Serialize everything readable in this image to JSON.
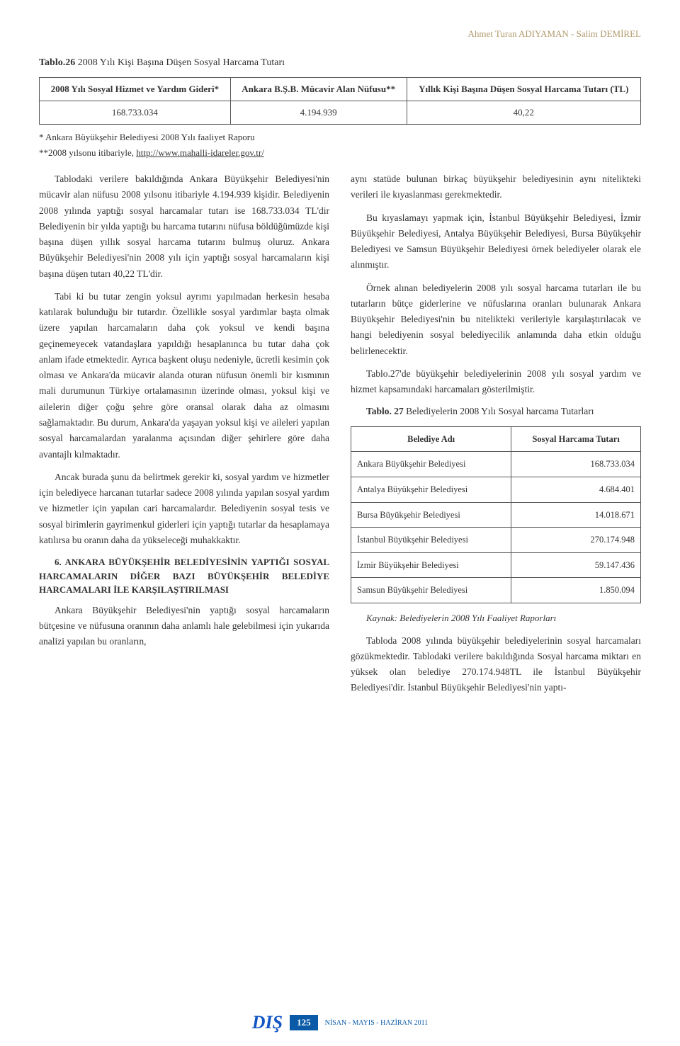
{
  "header": {
    "authors": "Ahmet Turan ADIYAMAN - Salim DEMİREL"
  },
  "table26": {
    "title_label": "Tablo.26",
    "title_text": " 2008 Yılı Kişi Başına Düşen Sosyal Harcama Tutarı",
    "columns": [
      "2008 Yılı Sosyal Hizmet ve Yardım Gideri*",
      "Ankara B.Ş.B. Mücavir Alan Nüfusu**",
      "Yıllık Kişi Başına Düşen Sosyal Harcama Tutarı (TL)"
    ],
    "row": [
      "168.733.034",
      "4.194.939",
      "40,22"
    ],
    "footnote1": "* Ankara Büyükşehir Belediyesi 2008 Yılı faaliyet Raporu",
    "footnote2_prefix": "**2008 yılsonu itibariyle, ",
    "footnote2_link": "http://www.mahalli-idareler.gov.tr/"
  },
  "left_col": {
    "p1": "Tablodaki verilere bakıldığında Ankara Büyükşehir Belediyesi'nin mücavir alan nüfusu 2008 yılsonu itibariyle 4.194.939 kişidir. Belediyenin 2008 yılında yaptığı sosyal harcamalar tutarı ise 168.733.034 TL'dir Belediyenin bir yılda yaptığı bu harcama tutarını nüfusa böldüğümüzde kişi başına düşen yıllık sosyal harcama tutarını bulmuş oluruz. Ankara Büyükşehir Belediyesi'nin 2008 yılı için yaptığı sosyal harcamaların kişi başına düşen tutarı 40,22 TL'dir.",
    "p2": "Tabi ki bu tutar zengin yoksul ayrımı yapılmadan herkesin hesaba katılarak bulunduğu bir tutardır. Özellikle sosyal yardımlar başta olmak üzere yapılan harcamaların daha çok yoksul ve kendi başına geçinemeyecek vatandaşlara yapıldığı hesaplanınca bu tutar daha çok anlam ifade etmektedir. Ayrıca başkent oluşu nedeniyle, ücretli kesimin çok olması ve Ankara'da mücavir alanda oturan nüfusun önemli bir kısmının mali durumunun Türkiye ortalamasının üzerinde olması, yoksul kişi ve ailelerin diğer çoğu şehre göre oransal olarak daha az olmasını sağlamaktadır. Bu durum, Ankara'da yaşayan yoksul kişi ve aileleri yapılan sosyal harcamalardan yaralanma açısından diğer şehirlere göre daha avantajlı kılmaktadır.",
    "p3": "Ancak burada şunu da belirtmek gerekir ki, sosyal yardım ve hizmetler için belediyece harcanan tutarlar sadece 2008 yılında yapılan sosyal yardım ve hizmetler için yapılan cari harcamalardır. Belediyenin sosyal tesis ve sosyal birimlerin gayrimenkul giderleri için yaptığı tutarlar da hesaplamaya katılırsa bu oranın daha da yükseleceği muhakkaktır.",
    "sec6": "6. ANKARA BÜYÜKŞEHİR BELEDİYESİNİN YAPTIĞI SOSYAL HARCAMALARIN DİĞER BAZI BÜYÜKŞEHİR BELEDİYE HARCAMALARI İLE KARŞILAŞTIRILMASI",
    "p4": "Ankara Büyükşehir Belediyesi'nin yaptığı sosyal harcamaların bütçesine ve nüfusuna oranının daha anlamlı hale gelebilmesi için yukarıda analizi yapılan bu oranların,"
  },
  "right_col": {
    "p1": "aynı statüde bulunan birkaç büyükşehir belediyesinin aynı nitelikteki verileri ile kıyaslanması gerekmektedir.",
    "p2": "Bu kıyaslamayı yapmak için, İstanbul Büyükşehir Belediyesi, İzmir Büyükşehir Belediyesi, Antalya Büyükşehir Belediyesi, Bursa Büyükşehir Belediyesi ve Samsun Büyükşehir Belediyesi örnek belediyeler olarak ele alınmıştır.",
    "p3": "Örnek alınan belediyelerin 2008 yılı sosyal harcama tutarları ile bu tutarların bütçe giderlerine ve nüfuslarına oranları bulunarak Ankara Büyükşehir Belediyesi'nin bu nitelikteki verileriyle karşılaştırılacak ve hangi belediyenin sosyal belediyecilik anlamında daha etkin olduğu belirlenecektir.",
    "p4": "Tablo.27'de büyükşehir belediyelerinin 2008 yılı sosyal yardım ve hizmet kapsamındaki harcamaları gösterilmiştir.",
    "t27_caption_label": "Tablo. 27",
    "t27_caption_text": " Belediyelerin 2008 Yılı Sosyal harcama Tutarları",
    "p5": "Tabloda 2008 yılında büyükşehir belediyelerinin sosyal harcamaları gözükmektedir. Tablodaki verilere bakıldığında Sosyal harcama miktarı en yüksek olan belediye 270.174.948TL ile İstanbul Büyükşehir Belediyesi'dir. İstanbul Büyükşehir Belediyesi'nin yaptı-"
  },
  "table27": {
    "headers": [
      "Belediye Adı",
      "Sosyal Harcama Tutarı"
    ],
    "rows": [
      [
        "Ankara Büyükşehir Belediyesi",
        "168.733.034"
      ],
      [
        "Antalya Büyükşehir Belediyesi",
        "4.684.401"
      ],
      [
        "Bursa Büyükşehir Belediyesi",
        "14.018.671"
      ],
      [
        "İstanbul Büyükşehir Belediyesi",
        "270.174.948"
      ],
      [
        "İzmir Büyükşehir Belediyesi",
        "59.147.436"
      ],
      [
        "Samsun Büyükşehir Belediyesi",
        "1.850.094"
      ]
    ],
    "source": "Kaynak: Belediyelerin 2008 Yılı Faaliyet Raporları"
  },
  "footer": {
    "logo": "DIŞ",
    "page": "125",
    "date": "NİSAN - MAYIS - HAZİRAN 2011"
  },
  "colors": {
    "header_text": "#b19a6b",
    "body_text": "#333333",
    "table_border": "#555555",
    "footer_blue": "#0a5aa8",
    "logo_blue": "#1156c4",
    "background": "#ffffff"
  },
  "typography": {
    "body_fontsize": 13.5,
    "line_height": 1.65,
    "font_family": "Georgia, Times New Roman, serif"
  }
}
